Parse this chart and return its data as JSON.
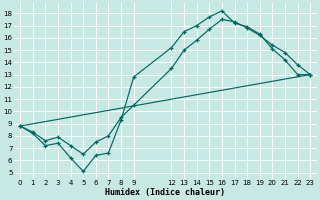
{
  "xlabel": "Humidex (Indice chaleur)",
  "bg_color": "#c8e8e4",
  "grid_color": "#b8d8d4",
  "line_color": "#006860",
  "xlim": [
    -0.5,
    23.5
  ],
  "ylim": [
    4.5,
    18.8
  ],
  "xticks": [
    0,
    1,
    2,
    3,
    4,
    5,
    6,
    7,
    8,
    9,
    12,
    13,
    14,
    15,
    16,
    17,
    18,
    19,
    20,
    21,
    22,
    23
  ],
  "yticks": [
    5,
    6,
    7,
    8,
    9,
    10,
    11,
    12,
    13,
    14,
    15,
    16,
    17,
    18
  ],
  "curve1_x": [
    0,
    1,
    2,
    3,
    4,
    5,
    6,
    7,
    8,
    9,
    12,
    13,
    14,
    15,
    16,
    17,
    18,
    19,
    20,
    21,
    22,
    23
  ],
  "curve1_y": [
    8.8,
    8.2,
    7.2,
    7.4,
    6.2,
    5.1,
    6.4,
    6.6,
    9.3,
    12.8,
    15.2,
    16.5,
    17.0,
    17.7,
    18.2,
    17.2,
    16.9,
    16.3,
    15.1,
    14.2,
    13.0,
    13.0
  ],
  "curve2_x": [
    0,
    1,
    2,
    3,
    4,
    5,
    6,
    7,
    8,
    9,
    12,
    13,
    14,
    15,
    16,
    17,
    18,
    19,
    20,
    21,
    22,
    23
  ],
  "curve2_y": [
    8.8,
    8.3,
    7.6,
    7.9,
    7.2,
    6.5,
    7.5,
    8.0,
    9.5,
    10.5,
    13.5,
    15.0,
    15.8,
    16.7,
    17.5,
    17.3,
    16.8,
    16.2,
    15.4,
    14.8,
    13.8,
    13.0
  ],
  "line3_x": [
    0,
    23
  ],
  "line3_y": [
    8.8,
    13.0
  ],
  "tick_fontsize": 5,
  "xlabel_fontsize": 6
}
